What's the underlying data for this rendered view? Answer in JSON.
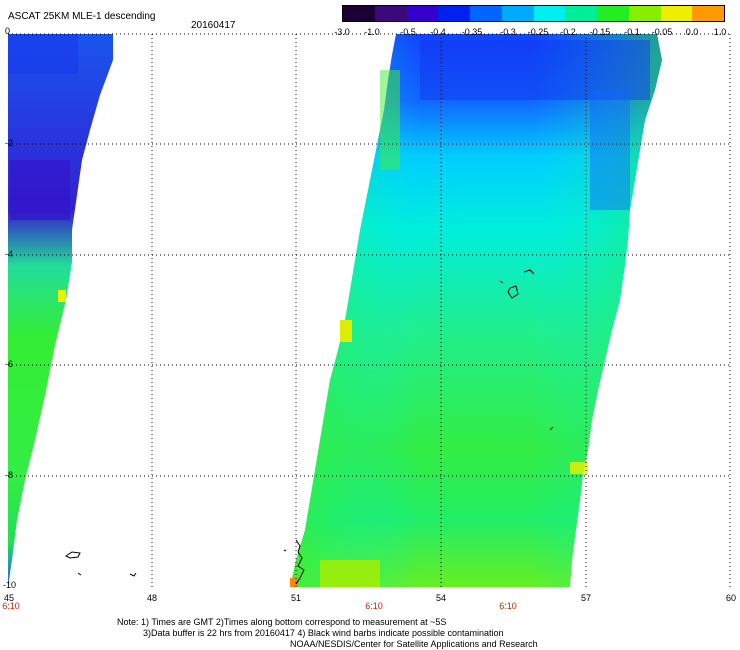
{
  "header": {
    "title": "ASCAT 25KM MLE-1 descending",
    "date": "20160417"
  },
  "colorbar": {
    "labels": [
      "-3.0",
      "-1.0",
      "-0.5",
      "-0.4",
      "-0.35",
      "-0.3",
      "-0.25",
      "-0.2",
      "-0.15",
      "-0.1",
      "-0.05",
      "0.0",
      "1.0"
    ],
    "colors": [
      "#1a0033",
      "#3a0a7a",
      "#3300cc",
      "#0022ee",
      "#0066ff",
      "#00aaff",
      "#00eeee",
      "#00ee99",
      "#22ee22",
      "#88ee00",
      "#eeee00",
      "#ff9900",
      "#ff2200"
    ]
  },
  "axes": {
    "x_labels": [
      "45",
      "48",
      "51",
      "54",
      "57",
      "60"
    ],
    "y_labels": [
      "0",
      "-2",
      "-4",
      "-6",
      "-8",
      "-10"
    ],
    "time_labels": [
      "6:10",
      "6:10",
      "6:10"
    ]
  },
  "notes": {
    "line1": "Note: 1) Times are GMT 2)Times along bottom correspond to measurement at ~5S",
    "line2": "3)Data buffer is 22 hrs from 20160417 4) Black wind barbs indicate possible contamination",
    "line3": "NOAA/NESDIS/Center for Satellite Applications and Research"
  }
}
